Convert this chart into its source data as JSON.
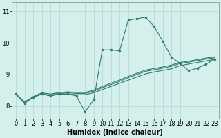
{
  "background_color": "#d5efec",
  "grid_color": "#b0d8d4",
  "line_color": "#2a7a6a",
  "xlabel": "Humidex (Indice chaleur)",
  "xlabel_fontsize": 7,
  "tick_fontsize": 6,
  "xlim": [
    -0.5,
    23.5
  ],
  "ylim": [
    7.6,
    11.3
  ],
  "yticks": [
    8,
    9,
    10,
    11
  ],
  "xticks": [
    0,
    1,
    2,
    3,
    4,
    5,
    6,
    7,
    8,
    9,
    10,
    11,
    12,
    13,
    14,
    15,
    16,
    17,
    18,
    19,
    20,
    21,
    22,
    23
  ],
  "line1_x": [
    0,
    1,
    2,
    3,
    4,
    5,
    6,
    7,
    8,
    9,
    10,
    11,
    12,
    13,
    14,
    15,
    16,
    17,
    18,
    19,
    20,
    21,
    22,
    23
  ],
  "line1_y": [
    8.38,
    8.08,
    8.28,
    8.38,
    8.32,
    8.38,
    8.38,
    8.32,
    7.82,
    8.18,
    9.78,
    9.78,
    9.75,
    10.72,
    10.77,
    10.82,
    10.52,
    10.05,
    9.55,
    9.35,
    9.12,
    9.2,
    9.33,
    9.48
  ],
  "line2_x": [
    0,
    1,
    2,
    3,
    4,
    5,
    6,
    7,
    8,
    9,
    10,
    11,
    12,
    13,
    14,
    15,
    16,
    17,
    18,
    19,
    20,
    21,
    22,
    23
  ],
  "line2_y": [
    8.38,
    8.12,
    8.28,
    8.38,
    8.33,
    8.38,
    8.38,
    8.36,
    8.36,
    8.42,
    8.52,
    8.62,
    8.72,
    8.82,
    8.92,
    9.02,
    9.08,
    9.13,
    9.18,
    9.28,
    9.33,
    9.38,
    9.43,
    9.48
  ],
  "line3_x": [
    0,
    1,
    2,
    3,
    4,
    5,
    6,
    7,
    8,
    9,
    10,
    11,
    12,
    13,
    14,
    15,
    16,
    17,
    18,
    19,
    20,
    21,
    22,
    23
  ],
  "line3_y": [
    8.38,
    8.12,
    8.28,
    8.38,
    8.35,
    8.4,
    8.42,
    8.4,
    8.4,
    8.47,
    8.58,
    8.68,
    8.78,
    8.9,
    9.0,
    9.1,
    9.15,
    9.2,
    9.26,
    9.35,
    9.39,
    9.44,
    9.49,
    9.53
  ],
  "line4_x": [
    0,
    1,
    2,
    3,
    4,
    5,
    6,
    7,
    8,
    9,
    10,
    11,
    12,
    13,
    14,
    15,
    16,
    17,
    18,
    19,
    20,
    21,
    22,
    23
  ],
  "line4_y": [
    8.38,
    8.12,
    8.3,
    8.42,
    8.38,
    8.43,
    8.45,
    8.43,
    8.43,
    8.5,
    8.62,
    8.72,
    8.82,
    8.94,
    9.04,
    9.14,
    9.19,
    9.24,
    9.3,
    9.38,
    9.42,
    9.47,
    9.52,
    9.56
  ]
}
